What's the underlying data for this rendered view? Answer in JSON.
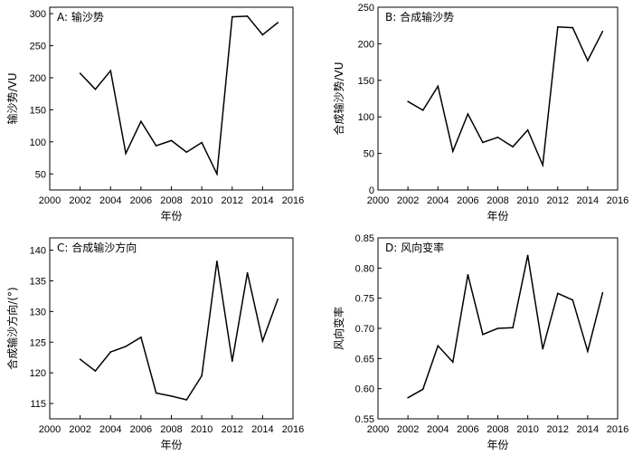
{
  "chart_data": [
    {
      "type": "line",
      "title": "A: 输沙势",
      "xlabel": "年份",
      "ylabel": "输沙势/VU",
      "xlim": [
        2000,
        2016
      ],
      "ylim": [
        25,
        310
      ],
      "xticks": [
        2000,
        2002,
        2004,
        2006,
        2008,
        2010,
        2012,
        2014,
        2016
      ],
      "yticks": [
        50,
        100,
        150,
        200,
        250,
        300
      ],
      "ytick_labels": [
        "50",
        "100",
        "150",
        "200",
        "250",
        "300"
      ],
      "x": [
        2002,
        2003,
        2004,
        2005,
        2006,
        2007,
        2008,
        2009,
        2010,
        2011,
        2012,
        2013,
        2014,
        2015
      ],
      "values": [
        207,
        182,
        211,
        82,
        132,
        94,
        102,
        84,
        99,
        50,
        295,
        296,
        267,
        286
      ]
    },
    {
      "type": "line",
      "title": "B: 合成输沙势",
      "xlabel": "年份",
      "ylabel": "合成输沙势/VU",
      "xlim": [
        2000,
        2016
      ],
      "ylim": [
        0,
        250
      ],
      "xticks": [
        2000,
        2002,
        2004,
        2006,
        2008,
        2010,
        2012,
        2014,
        2016
      ],
      "yticks": [
        0,
        50,
        100,
        150,
        200,
        250
      ],
      "ytick_labels": [
        "0",
        "50",
        "100",
        "150",
        "200",
        "250"
      ],
      "x": [
        2002,
        2003,
        2004,
        2005,
        2006,
        2007,
        2008,
        2009,
        2010,
        2011,
        2012,
        2013,
        2014,
        2015
      ],
      "values": [
        121,
        109,
        142,
        53,
        104,
        65,
        72,
        59,
        82,
        34,
        223,
        222,
        177,
        217
      ]
    },
    {
      "type": "line",
      "title": "C: 合成输沙方向",
      "xlabel": "年份",
      "ylabel": "合成输沙方向/(°)",
      "xlim": [
        2000,
        2016
      ],
      "ylim": [
        112.5,
        142
      ],
      "xticks": [
        2000,
        2002,
        2004,
        2006,
        2008,
        2010,
        2012,
        2014,
        2016
      ],
      "yticks": [
        115,
        120,
        125,
        130,
        135,
        140
      ],
      "ytick_labels": [
        "115",
        "120",
        "125",
        "130",
        "135",
        "140"
      ],
      "x": [
        2002,
        2003,
        2004,
        2005,
        2006,
        2007,
        2008,
        2009,
        2010,
        2011,
        2012,
        2013,
        2014,
        2015
      ],
      "values": [
        122.2,
        120.3,
        123.4,
        124.3,
        125.8,
        116.7,
        116.2,
        115.6,
        119.5,
        138.2,
        121.9,
        136.3,
        125.2,
        132.0
      ]
    },
    {
      "type": "line",
      "title": "D: 风向变率",
      "xlabel": "年份",
      "ylabel": "风向变率",
      "xlim": [
        2000,
        2016
      ],
      "ylim": [
        0.55,
        0.85
      ],
      "xticks": [
        2000,
        2002,
        2004,
        2006,
        2008,
        2010,
        2012,
        2014,
        2016
      ],
      "yticks": [
        0.55,
        0.6,
        0.65,
        0.7,
        0.75,
        0.8,
        0.85
      ],
      "ytick_labels": [
        "0.55",
        "0.60",
        "0.65",
        "0.70",
        "0.75",
        "0.80",
        "0.85"
      ],
      "x": [
        2002,
        2003,
        2004,
        2005,
        2006,
        2007,
        2008,
        2009,
        2010,
        2011,
        2012,
        2013,
        2014,
        2015
      ],
      "values": [
        0.585,
        0.599,
        0.671,
        0.644,
        0.789,
        0.69,
        0.7,
        0.701,
        0.821,
        0.666,
        0.758,
        0.747,
        0.662,
        0.759
      ]
    }
  ]
}
